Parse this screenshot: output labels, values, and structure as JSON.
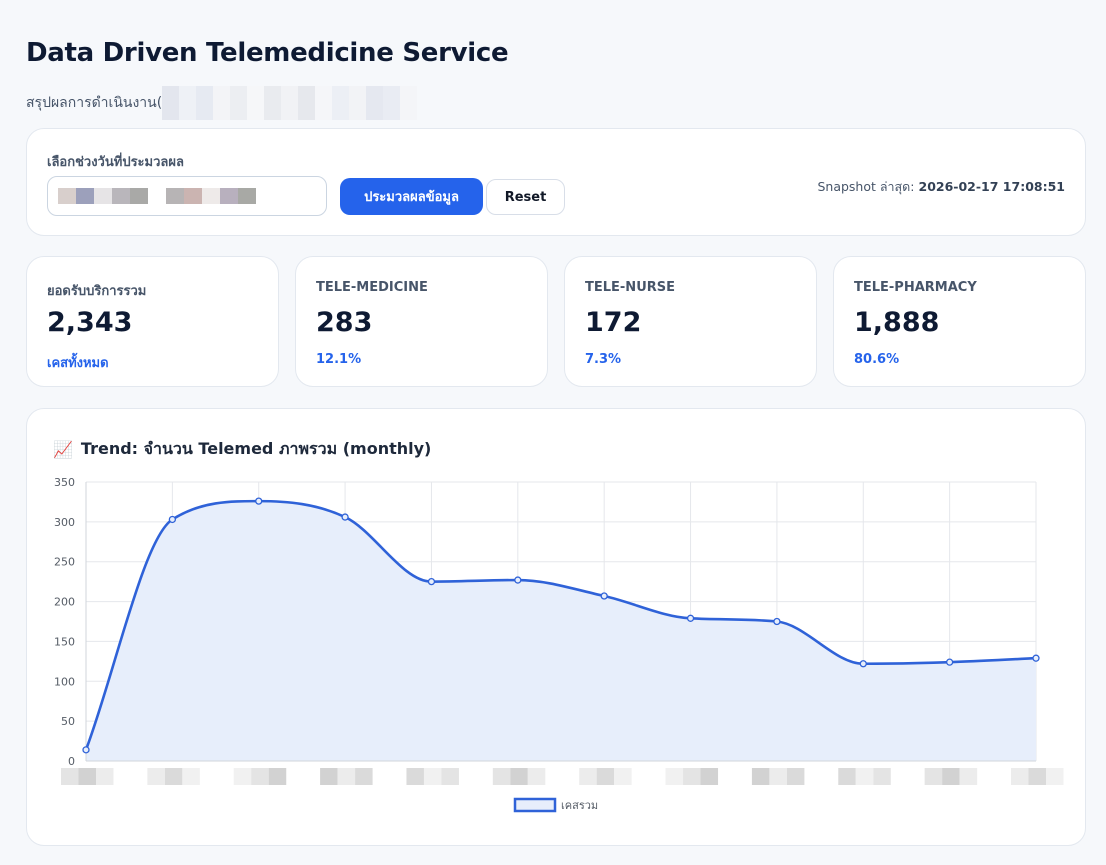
{
  "page": {
    "title": "Data Driven Telemedicine Service",
    "subtitle": "สรุปผลการดำเนินงาน("
  },
  "filter": {
    "label": "เลือกช่วงวันที่ประมวลผล",
    "process_button": "ประมวลผลข้อมูล",
    "reset_button": "Reset",
    "snapshot_label": "Snapshot ล่าสุด:",
    "snapshot_value": "2026-02-17 17:08:51"
  },
  "kpis": [
    {
      "label": "ยอดรับบริการรวม",
      "value": "2,343",
      "sub": "เคสทั้งหมด"
    },
    {
      "label": "TELE-MEDICINE",
      "value": "283",
      "sub": "12.1%"
    },
    {
      "label": "TELE-NURSE",
      "value": "172",
      "sub": "7.3%"
    },
    {
      "label": "TELE-PHARMACY",
      "value": "1,888",
      "sub": "80.6%"
    }
  ],
  "chart_section": {
    "icon": "chart-increasing-icon",
    "icon_glyph": "📈",
    "title": "Trend: จำนวน Telemed ภาพรวม (monthly)"
  },
  "colors": {
    "primary": "#2563eb",
    "line": "#2f62d8",
    "fill": "#e7eefb"
  },
  "chart_data": {
    "type": "area",
    "categories": [
      "",
      "",
      "",
      "",
      "",
      "",
      "",
      "",
      "",
      "",
      "",
      ""
    ],
    "series": [
      {
        "name": "เคสรวม",
        "values": [
          14,
          303,
          326,
          306,
          225,
          227,
          207,
          179,
          175,
          122,
          124,
          129
        ]
      }
    ],
    "ylim": [
      0,
      350
    ],
    "yticks": [
      0,
      50,
      100,
      150,
      200,
      250,
      300,
      350
    ],
    "grid": true,
    "legend": "bottom"
  }
}
